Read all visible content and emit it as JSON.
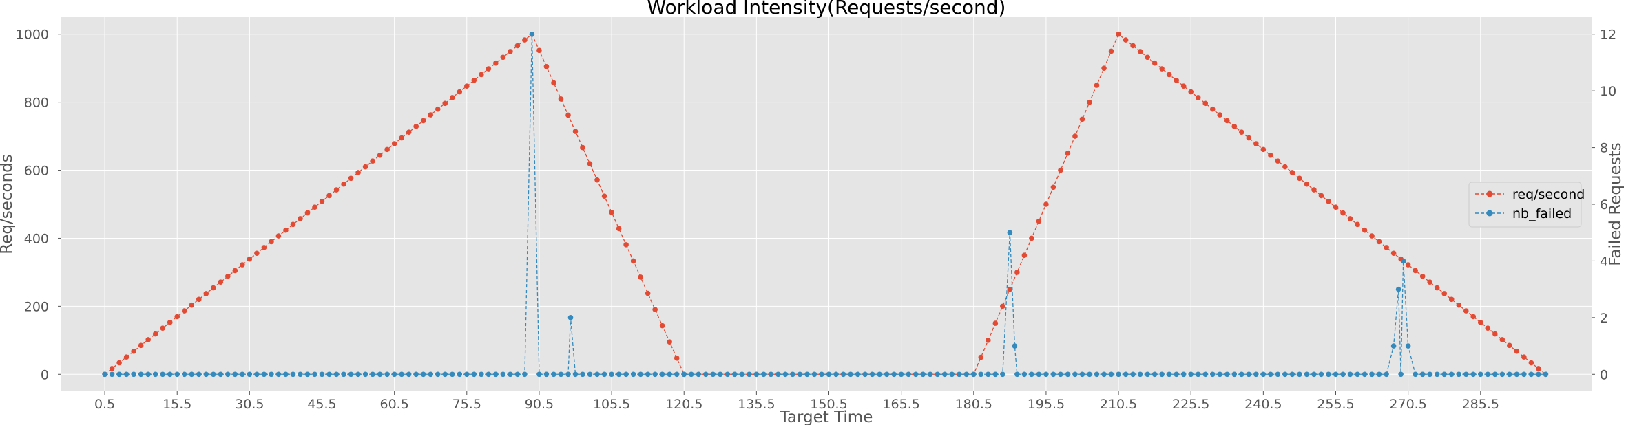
{
  "chart_data": {
    "type": "line",
    "title": "Workload Intensity(Requests/second)",
    "xlabel": "Target Time",
    "ylabel": "Req/seconds",
    "y2label": "Failed Requests",
    "xlim": [
      -8.5,
      308.5
    ],
    "ylim": [
      -50,
      1050
    ],
    "y2lim": [
      -0.6,
      12.6
    ],
    "x_ticks": [
      0.5,
      15.5,
      30.5,
      45.5,
      60.5,
      75.5,
      90.5,
      105.5,
      120.5,
      135.5,
      150.5,
      165.5,
      180.5,
      195.5,
      210.5,
      225.5,
      240.5,
      255.5,
      270.5,
      285.5
    ],
    "x_tick_labels": [
      "0.5",
      "15.5",
      "30.5",
      "45.5",
      "60.5",
      "75.5",
      "90.5",
      "105.5",
      "120.5",
      "135.5",
      "150.5",
      "165.5",
      "180.5",
      "195.5",
      "210.5",
      "225.5",
      "240.5",
      "255.5",
      "270.5",
      "285.5"
    ],
    "y_ticks": [
      0,
      200,
      400,
      600,
      800,
      1000
    ],
    "y_tick_labels": [
      "0",
      "200",
      "400",
      "600",
      "800",
      "1000"
    ],
    "y2_ticks": [
      0,
      2,
      4,
      6,
      8,
      10,
      12
    ],
    "y2_tick_labels": [
      "0",
      "2",
      "4",
      "6",
      "8",
      "10",
      "12"
    ],
    "grid": true,
    "legend_position": "center-right",
    "series": [
      {
        "name": "req/second",
        "axis": "left",
        "color": "#E24A33",
        "x_start": 0.5,
        "x_step": 1.5,
        "segments": [
          {
            "from_x": 0.5,
            "from_y": 0,
            "to_x": 89,
            "to_y": 1000
          },
          {
            "from_x": 89,
            "from_y": 1000,
            "to_x": 120.5,
            "to_y": 0
          },
          {
            "from_x": 120.5,
            "from_y": 0,
            "to_x": 180.5,
            "to_y": 0
          },
          {
            "from_x": 180.5,
            "from_y": 0,
            "to_x": 210.5,
            "to_y": 1000
          },
          {
            "from_x": 210.5,
            "from_y": 1000,
            "to_x": 299,
            "to_y": 0
          }
        ]
      },
      {
        "name": "nb_failed",
        "axis": "right",
        "color": "#348ABD",
        "x_start": 0.5,
        "x_step": 1.5,
        "baseline": 0,
        "x_end": 299,
        "spikes": [
          {
            "x": 89.0,
            "value": 12
          },
          {
            "x": 97.0,
            "value": 2
          },
          {
            "x": 188.0,
            "value": 5
          },
          {
            "x": 189.0,
            "value": 1
          },
          {
            "x": 267.5,
            "value": 1
          },
          {
            "x": 268.5,
            "value": 3
          },
          {
            "x": 269.5,
            "value": 4
          },
          {
            "x": 270.5,
            "value": 1
          }
        ]
      }
    ]
  }
}
